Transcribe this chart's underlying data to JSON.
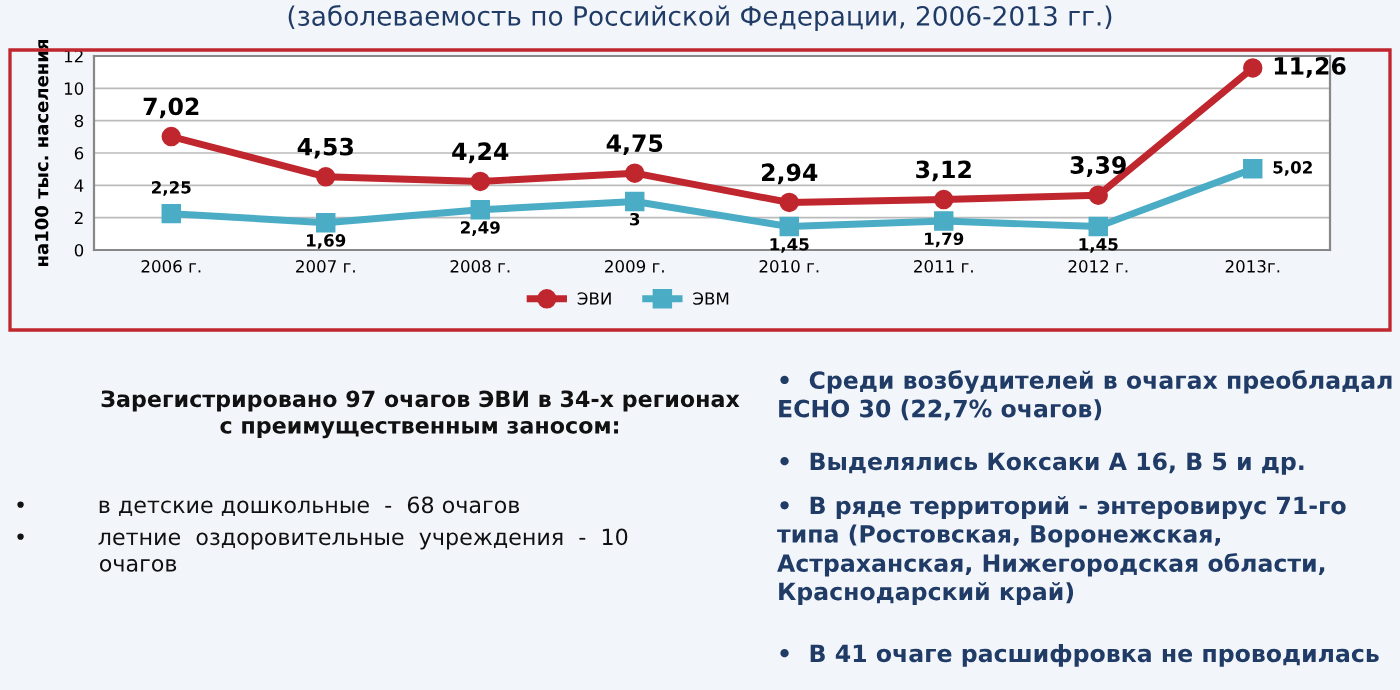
{
  "chart_data": {
    "type": "line",
    "title": "(заболеваемость по Российской Федерации, 2006-2013 гг.)",
    "ylabel": "на100 тыс. населения",
    "categories": [
      "2006 г.",
      "2007 г.",
      "2008 г.",
      "2009 г.",
      "2010 г.",
      "2011 г.",
      "2012 г.",
      "2013г."
    ],
    "series": [
      {
        "name": "ЭВИ",
        "color": "#c0262d",
        "marker": "circle",
        "values": [
          7.02,
          4.53,
          4.24,
          4.75,
          2.94,
          3.12,
          3.39,
          11.26
        ],
        "value_labels": [
          "7,02",
          "4,53",
          "4,24",
          "4,75",
          "2,94",
          "3,12",
          "3,39",
          "11,26"
        ]
      },
      {
        "name": "ЭВМ",
        "color": "#4bacc6",
        "marker": "square",
        "values": [
          2.25,
          1.69,
          2.49,
          3,
          1.45,
          1.79,
          1.45,
          5.02
        ],
        "value_labels": [
          "2,25",
          "1,69",
          "2,49",
          "3",
          "1,45",
          "1,79",
          "1,45",
          "5,02"
        ]
      }
    ],
    "ylim": [
      0,
      12
    ],
    "yticks": [
      0,
      2,
      4,
      6,
      8,
      10,
      12
    ],
    "grid": "y",
    "legend": "bottom",
    "annotations": [
      "Зарегистрировано 97 очагов ЭВИ в 34-х регионах\nс преимущественным заносом:",
      "•          в детские дошкольные  -  68 очагов",
      "•          летние  оздоровительные  учреждения  -  10\n            очагов",
      "•  Среди возбудителей в очагах преобладал ECHO 30 (22,7% очагов)",
      "•  Выделялись Коксаки А 16, В 5 и др.",
      "•  В ряде территорий - энтеровирус 71-го типа (Ростовская, Воронежская, Астраханская, Нижегородская области, Краснодарский край)",
      "•  В 41 очаге расшифровка не проводилась"
    ]
  }
}
